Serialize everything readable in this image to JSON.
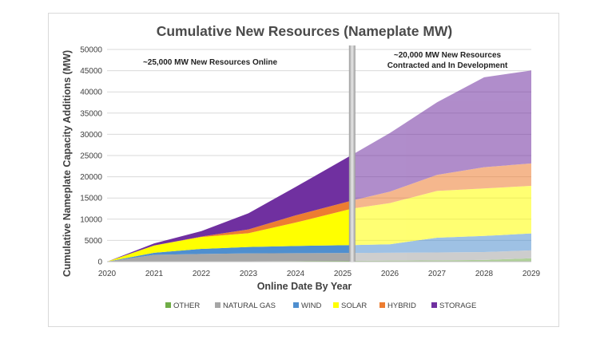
{
  "chart_data": {
    "type": "area",
    "title": "Cumulative New Resources (Nameplate MW)",
    "xlabel": "Online Date By Year",
    "ylabel": "Cumulative Nameplate Capacity Additions (MW)",
    "x": [
      2020,
      2021,
      2022,
      2023,
      2024,
      2025.2,
      2026,
      2027,
      2028,
      2029
    ],
    "xticks": [
      "2020",
      "2021",
      "2022",
      "2023",
      "2024",
      "2025",
      "2026",
      "2027",
      "2028",
      "2029"
    ],
    "xlim": [
      2020,
      2029
    ],
    "ylim": [
      0,
      50000
    ],
    "yticks": [
      "0",
      "5000",
      "10000",
      "15000",
      "20000",
      "25000",
      "30000",
      "35000",
      "40000",
      "45000",
      "50000"
    ],
    "split_x": 2025.2,
    "stacked": true,
    "grid": "horizontal",
    "legend_position": "bottom",
    "series": [
      {
        "name": "OTHER",
        "values": [
          0,
          0,
          50,
          100,
          150,
          200,
          250,
          300,
          400,
          800
        ]
      },
      {
        "name": "NATURAL GAS",
        "values": [
          0,
          1600,
          1750,
          1850,
          1850,
          1850,
          1850,
          1850,
          1850,
          1850
        ]
      },
      {
        "name": "WIND",
        "values": [
          0,
          500,
          1200,
          1500,
          1700,
          1850,
          2000,
          3500,
          3800,
          4000
        ]
      },
      {
        "name": "SOLAR",
        "values": [
          0,
          1700,
          2800,
          3250,
          5500,
          8600,
          9700,
          11000,
          11200,
          11200
        ]
      },
      {
        "name": "HYBRID",
        "values": [
          0,
          0,
          100,
          900,
          1700,
          1900,
          2700,
          3800,
          5000,
          5300
        ]
      },
      {
        "name": "STORAGE",
        "values": [
          0,
          500,
          1300,
          3800,
          6700,
          10800,
          13800,
          17100,
          21200,
          21900
        ]
      }
    ],
    "colors": {
      "OTHER": "#70ad47",
      "NATURAL GAS": "#a6a6a6",
      "WIND": "#4f8fcf",
      "SOLAR": "#ffff00",
      "HYBRID": "#ed7d31",
      "STORAGE": "#7030a0"
    },
    "annotations": [
      {
        "text": "~25,000 MW New Resources Online"
      },
      {
        "text": "~20,000 MW New Resources"
      },
      {
        "text": "Contracted and In Development"
      }
    ]
  }
}
